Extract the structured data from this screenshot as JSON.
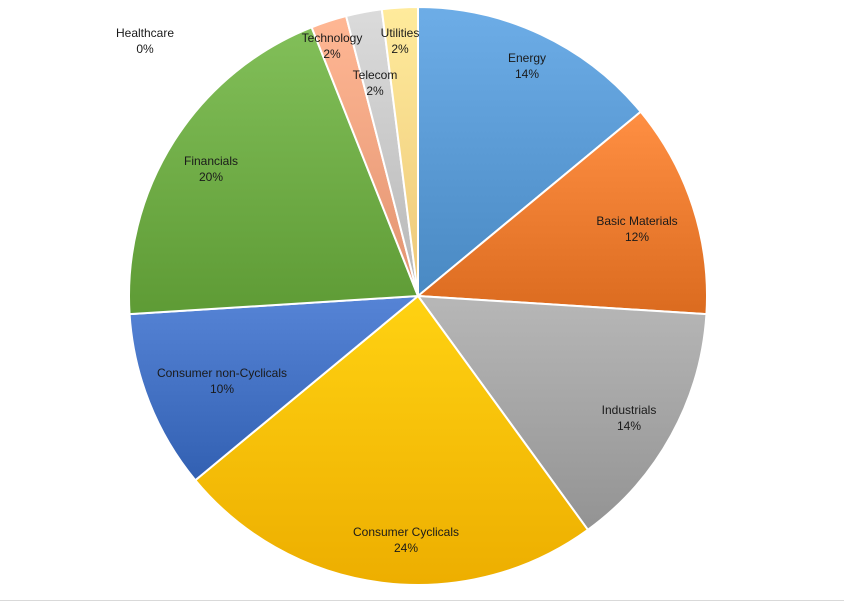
{
  "chart_data": {
    "type": "pie",
    "title": "",
    "start_angle_deg": 0,
    "direction": "clockwise",
    "legend": "none",
    "slices": [
      {
        "name": "Energy",
        "value": 14,
        "label": "14%",
        "color": "#5b9bd5"
      },
      {
        "name": "Basic Materials",
        "value": 12,
        "label": "12%",
        "color": "#ed7d31"
      },
      {
        "name": "Industrials",
        "value": 14,
        "label": "14%",
        "color": "#a5a5a5"
      },
      {
        "name": "Consumer Cyclicals",
        "value": 24,
        "label": "24%",
        "color": "#ffc000"
      },
      {
        "name": "Consumer non-Cyclicals",
        "value": 10,
        "label": "10%",
        "color": "#4472c4"
      },
      {
        "name": "Financials",
        "value": 20,
        "label": "20%",
        "color": "#70ad47"
      },
      {
        "name": "Healthcare",
        "value": 0,
        "label": "0%",
        "color": "#264478"
      },
      {
        "name": "Technology",
        "value": 2,
        "label": "2%",
        "color": "#f4a582"
      },
      {
        "name": "Telecom",
        "value": 2,
        "label": "2%",
        "color": "#c9c9c9"
      },
      {
        "name": "Utilities",
        "value": 2,
        "label": "2%",
        "color": "#ffd98a"
      }
    ]
  }
}
